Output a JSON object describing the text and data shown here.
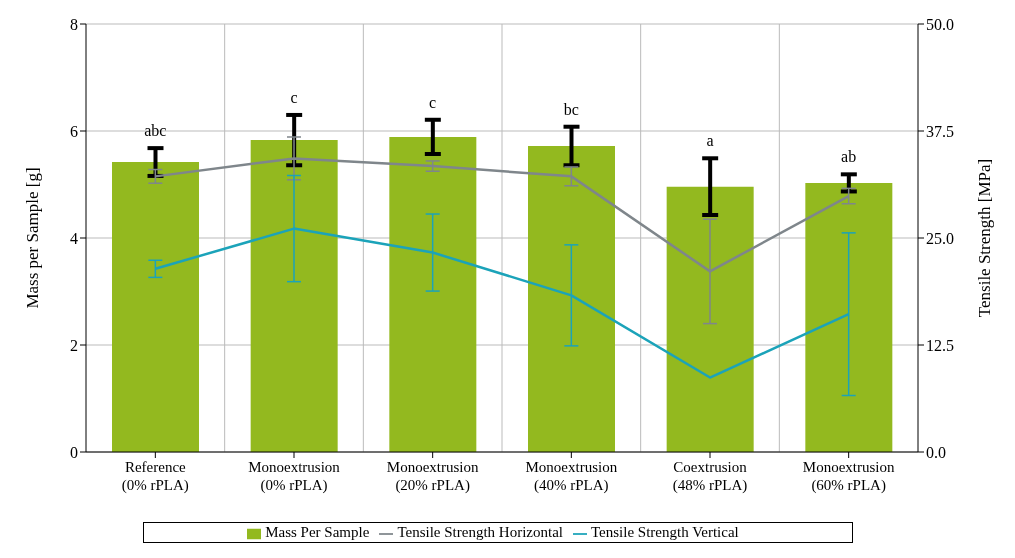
{
  "chart_data": {
    "type": "bar",
    "ylabel": "Mass per Sample   [g]",
    "y2label": "Tensile Strength   [MPa]",
    "categories": [
      "Reference\n(0% rPLA)",
      "Monoextrusion\n(0% rPLA)",
      "Monoextrusion\n(20% rPLA)",
      "Monoextrusion\n(40% rPLA)",
      "Coextrusion\n(48% rPLA)",
      "Monoextrusion\n(60% rPLA)"
    ],
    "series": [
      {
        "name": "Mass Per Sample",
        "color": "#93b91f",
        "values": [
          5.42,
          5.83,
          5.89,
          5.72,
          4.96,
          5.03
        ],
        "errors": [
          0.26,
          0.47,
          0.32,
          0.36,
          0.53,
          0.16
        ]
      },
      {
        "name": "Tensile Strength Horizontal",
        "type": "line",
        "axis": "y2",
        "color": "#7f868b",
        "values": [
          32.2,
          34.3,
          33.4,
          32.2,
          21.1,
          29.9
        ],
        "errors": [
          0.8,
          2.5,
          0.6,
          1.1,
          6.1,
          0.9
        ]
      },
      {
        "name": "Tensile Strength Vertical",
        "type": "line",
        "axis": "y2",
        "color": "#1ba3b9",
        "values": [
          21.4,
          26.1,
          23.3,
          18.3,
          8.7,
          16.1
        ],
        "errors": [
          1.0,
          6.2,
          4.5,
          5.9,
          null,
          9.5
        ]
      }
    ],
    "ylim": [
      0,
      8
    ],
    "yticks": [
      0,
      2,
      4,
      6,
      8
    ],
    "y2lim": [
      0,
      50
    ],
    "y2ticks": [
      {
        "value": 0,
        "label": "0.0"
      },
      {
        "value": 12.5,
        "label": "12.5"
      },
      {
        "value": 25,
        "label": "25.0"
      },
      {
        "value": 37.5,
        "label": "37.5"
      },
      {
        "value": 50,
        "label": "50.0"
      }
    ],
    "annotations": [
      "abc",
      "c",
      "c",
      "bc",
      "a",
      "ab"
    ],
    "grid": true,
    "legend": "bottom",
    "marker": "none",
    "line_style": "solid"
  }
}
